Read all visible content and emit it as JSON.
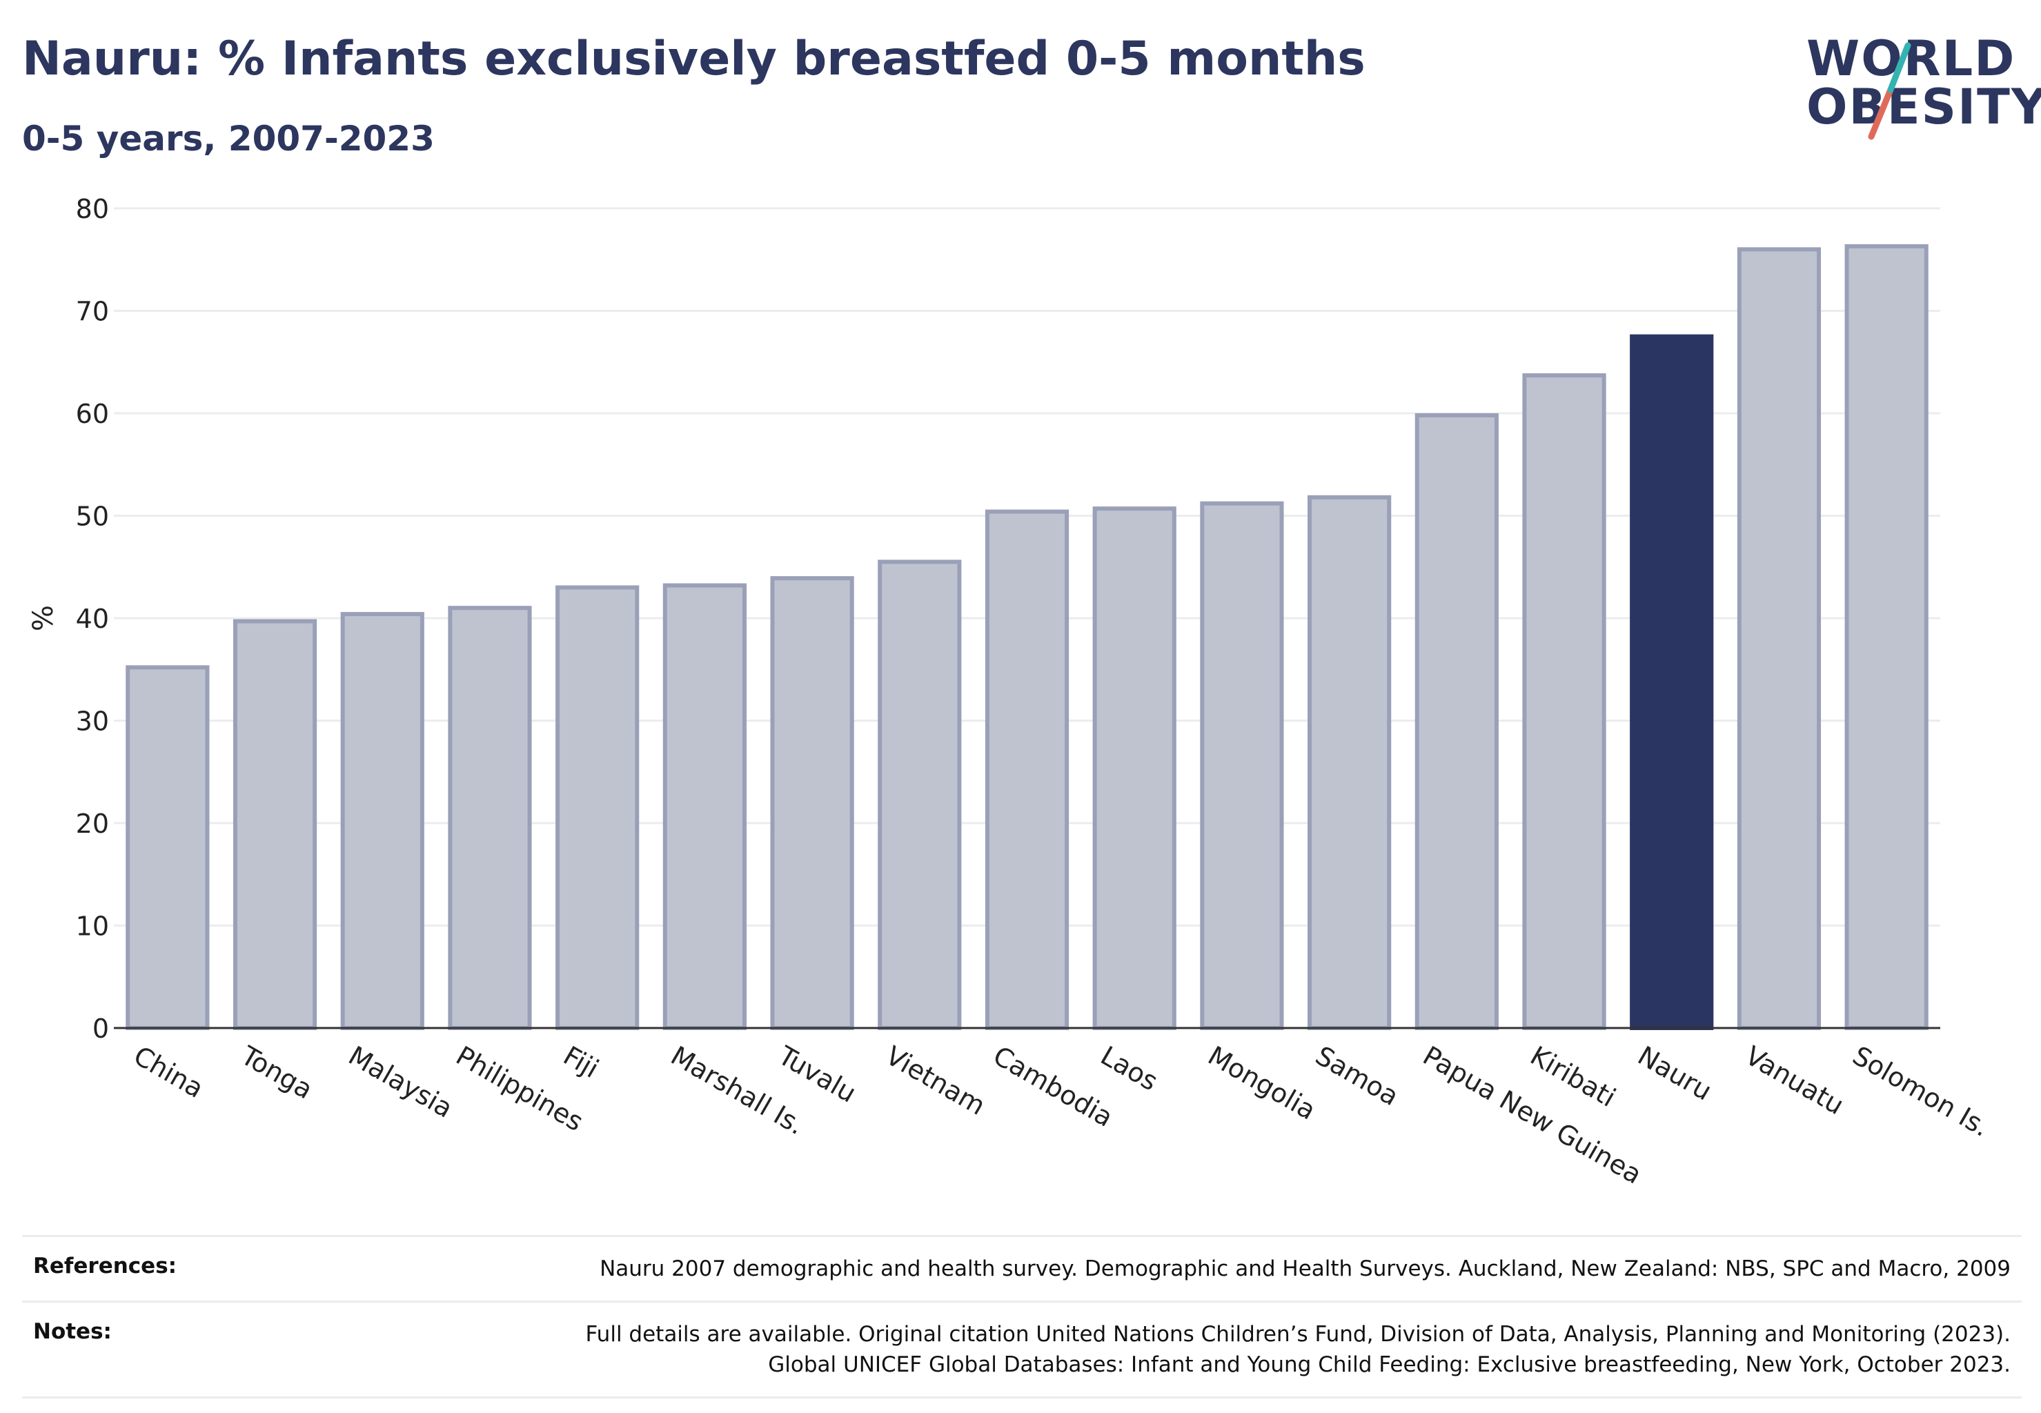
{
  "header": {
    "title": "Nauru: % Infants exclusively breastfed 0-5 months",
    "subtitle": "0-5 years, 2007-2023"
  },
  "logo": {
    "line1": "WORLD",
    "line2": "OBESITY"
  },
  "colors": {
    "bar_default": "#bfc3d0",
    "bar_edge": "#9aa0b8",
    "bar_highlight": "#2a3561",
    "text": "#2c365e",
    "grid": "#ececf0"
  },
  "chart_data": {
    "type": "bar",
    "title": "Nauru: % Infants exclusively breastfed 0-5 months",
    "subtitle": "0-5 years, 2007-2023",
    "xlabel": "",
    "ylabel": "%",
    "ylim": [
      0,
      80
    ],
    "yticks": [
      0,
      10,
      20,
      30,
      40,
      50,
      60,
      70,
      80
    ],
    "grid": true,
    "highlight": "Nauru",
    "categories": [
      "China",
      "Tonga",
      "Malaysia",
      "Philippines",
      "Fiji",
      "Marshall Is.",
      "Tuvalu",
      "Vietnam",
      "Cambodia",
      "Laos",
      "Mongolia",
      "Samoa",
      "Papua New Guinea",
      "Kiribati",
      "Nauru",
      "Vanuatu",
      "Solomon Is."
    ],
    "values": [
      35.2,
      39.7,
      40.4,
      41.0,
      43.0,
      43.2,
      43.9,
      45.5,
      50.4,
      50.7,
      51.2,
      51.8,
      59.8,
      63.7,
      67.5,
      76.0,
      76.3
    ]
  },
  "footer": {
    "references_label": "References:",
    "references_text": "Nauru 2007 demographic and health survey. Demographic and Health Surveys. Auckland, New Zealand: NBS, SPC and Macro, 2009",
    "notes_label": "Notes:",
    "notes_line1": "Full details are available. Original citation United Nations Children’s Fund, Division of Data, Analysis, Planning and Monitoring (2023).",
    "notes_line2": "Global UNICEF Global Databases: Infant and Young Child Feeding: Exclusive breastfeeding, New York, October 2023."
  }
}
